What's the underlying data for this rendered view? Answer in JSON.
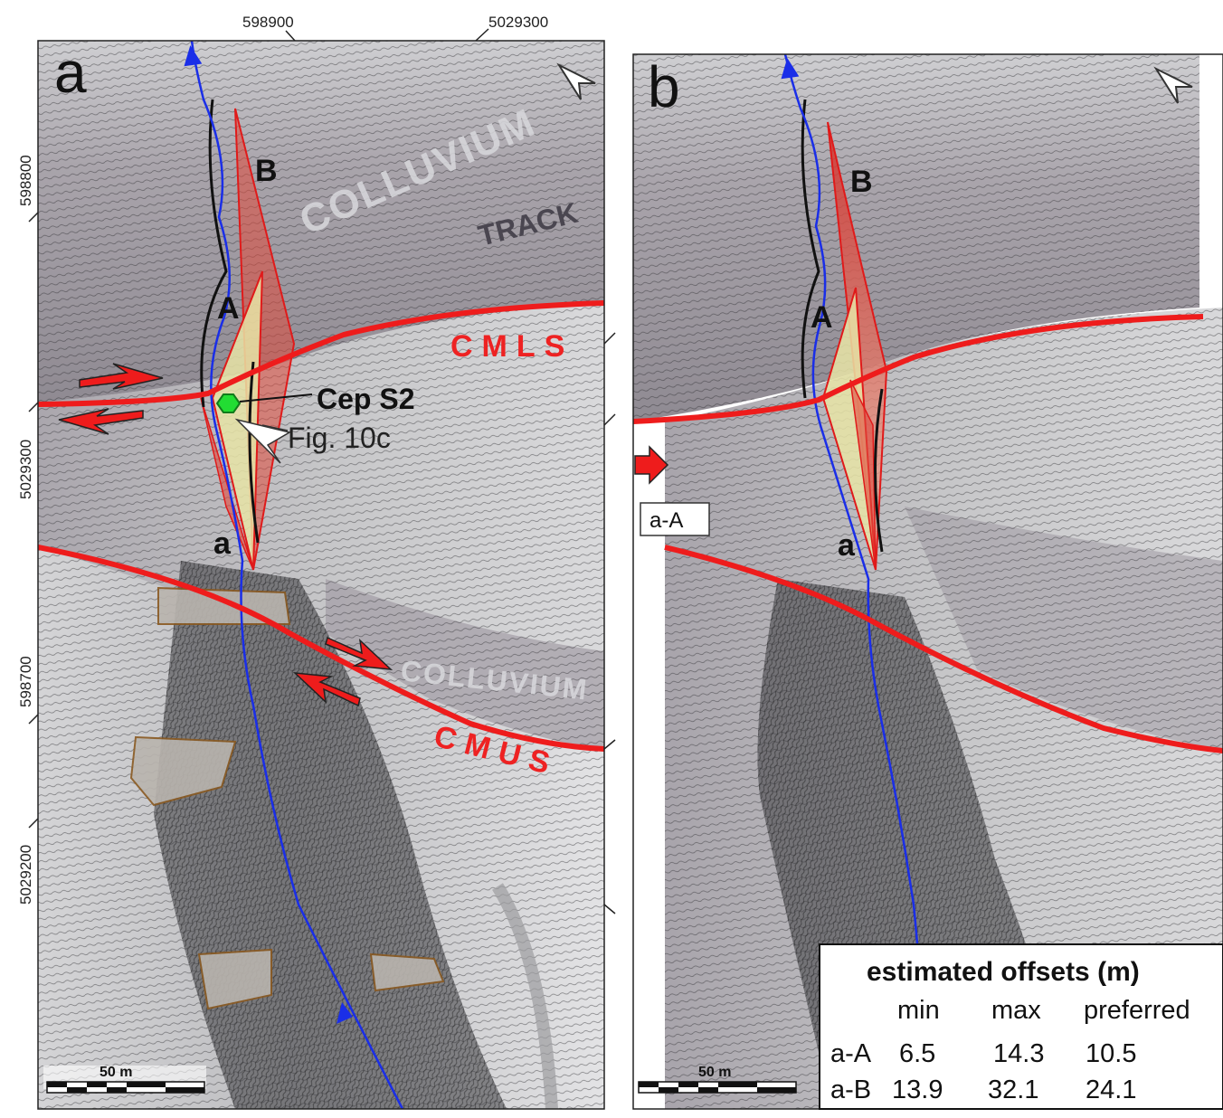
{
  "coordinates": {
    "top_1": "598900",
    "top_2": "5029300",
    "left_1": "598800",
    "left_2": "5029300",
    "left_3": "598700",
    "left_4": "5029200"
  },
  "panel_a": {
    "letter": "a",
    "colluvium_upper": "COLLUVIUM",
    "track": "TRACK",
    "colluvium_lower": "COLLUVIUM",
    "cmls": "CMLS",
    "cmus": "CMUS",
    "point_A": "A",
    "point_B": "B",
    "point_a": "a",
    "site_label": "Cep S2",
    "fig_ref": "Fig. 10c",
    "scale_label": "50 m"
  },
  "panel_b": {
    "letter": "b",
    "point_A": "A",
    "point_B": "B",
    "point_a": "a",
    "profile_label": "a-A",
    "scale_label": "50 m"
  },
  "offset_table": {
    "title": "estimated offsets (m)",
    "headers": [
      "min",
      "max",
      "preferred"
    ],
    "rows": [
      {
        "name": "a-A",
        "min": "6.5",
        "max": "14.3",
        "preferred": "10.5"
      },
      {
        "name": "a-B",
        "min": "13.9",
        "max": "32.1",
        "preferred": "24.1"
      }
    ]
  },
  "colors": {
    "fault": "#ee1c1c",
    "stream": "#1a2ee8",
    "site_marker": "#22dd33",
    "offset_fill": "#e86a5a",
    "offset_yellow": "#e8e4a6"
  }
}
